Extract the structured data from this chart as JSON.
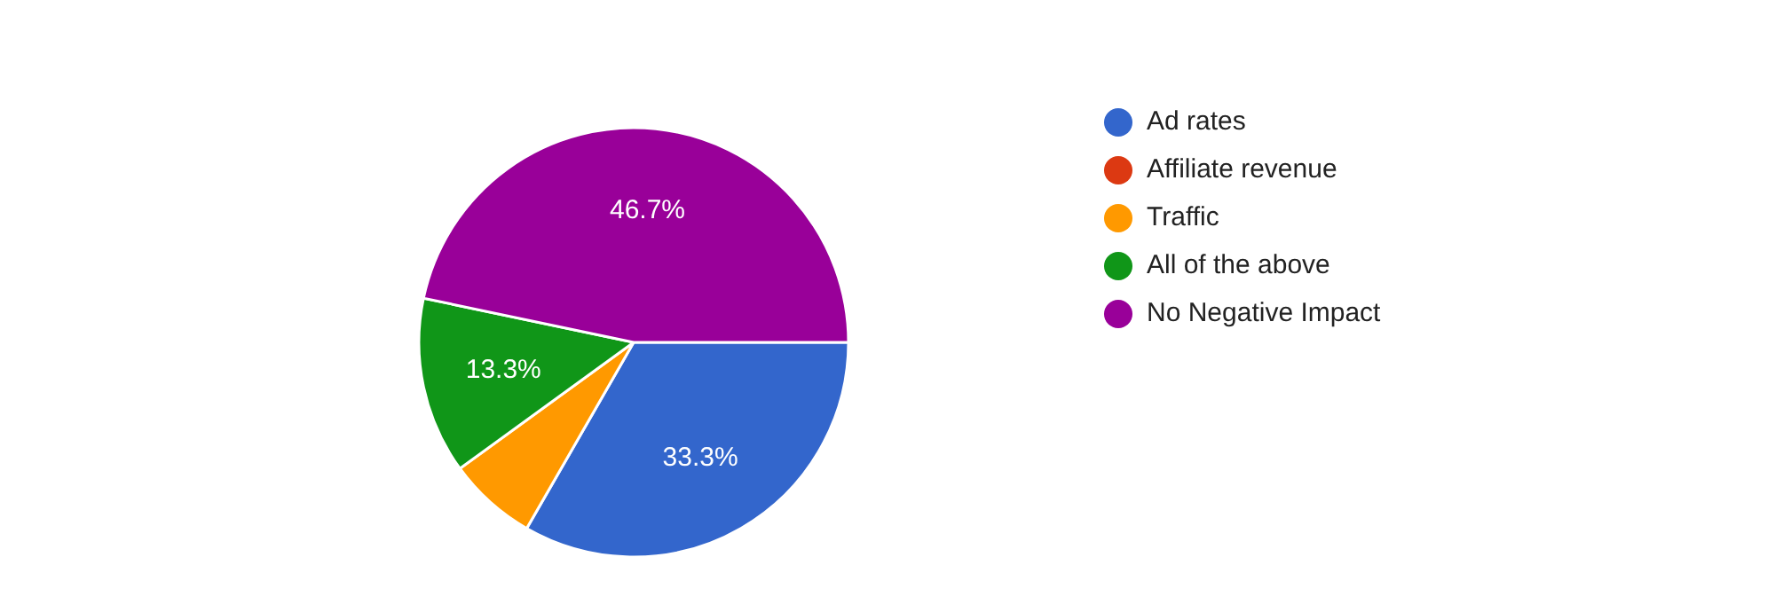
{
  "chart_data": {
    "type": "pie",
    "categories": [
      "Ad rates",
      "Affiliate revenue",
      "Traffic",
      "All of the above",
      "No Negative Impact"
    ],
    "values": [
      33.3,
      0,
      6.7,
      13.3,
      46.7
    ],
    "colors": [
      "#3366cc",
      "#dc3912",
      "#ff9900",
      "#109618",
      "#990099"
    ],
    "value_labels": [
      "33.3%",
      null,
      null,
      "13.3%",
      "46.7%"
    ],
    "legend": "right"
  }
}
